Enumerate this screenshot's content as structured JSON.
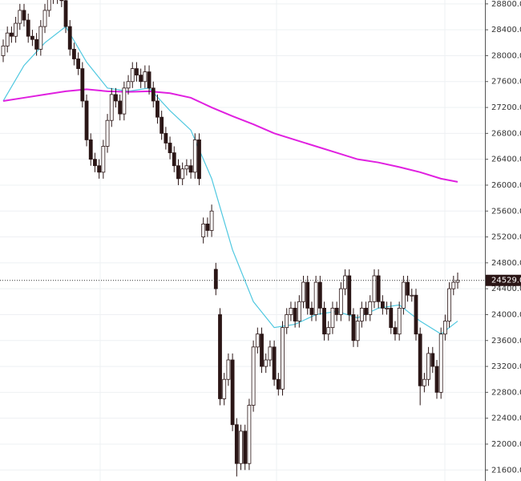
{
  "chart_data": {
    "type": "candlestick",
    "categories": [
      null,
      null,
      null,
      null,
      null,
      null,
      null,
      null,
      null,
      null,
      null,
      null,
      null,
      null,
      null,
      null,
      null,
      null,
      null,
      null,
      null,
      null,
      null,
      null,
      null,
      null,
      null,
      null,
      null,
      null,
      null,
      null,
      null,
      null,
      null,
      null,
      null,
      null,
      null,
      null,
      null,
      null,
      null,
      null,
      null,
      null,
      null,
      null,
      null,
      null,
      null,
      null,
      null,
      null,
      null,
      null,
      null,
      null,
      null,
      null,
      null,
      null,
      null,
      null,
      null,
      null,
      null,
      null,
      null,
      null,
      null,
      null,
      null,
      null,
      null,
      null,
      null,
      null,
      null,
      null,
      null,
      null,
      null,
      null,
      null,
      null,
      null,
      null,
      null,
      null,
      null,
      null,
      null,
      null,
      null,
      null,
      null,
      null,
      null,
      null,
      null,
      null,
      null,
      null,
      null,
      null,
      null,
      null,
      null,
      null
    ],
    "open": [
      28000,
      28150,
      28350,
      28300,
      28500,
      28700,
      28550,
      28300,
      28250,
      28100,
      28450,
      28700,
      28900,
      28950,
      28900,
      28850,
      28450,
      28100,
      27950,
      27800,
      27300,
      26700,
      26400,
      26300,
      26200,
      26600,
      27000,
      27400,
      27300,
      27100,
      27500,
      27600,
      27800,
      27700,
      27600,
      27750,
      27500,
      27300,
      27050,
      26800,
      26650,
      26500,
      26300,
      26100,
      26250,
      26300,
      26200,
      26700,
      25200,
      25400,
      25300,
      24700,
      24000,
      22700,
      23000,
      23300,
      22300,
      21700,
      22200,
      21700,
      22600,
      23500,
      23700,
      23200,
      23300,
      23500,
      23000,
      22850,
      23800,
      24000,
      24100,
      23900,
      24200,
      24500,
      24100,
      24000,
      24500,
      24100,
      23700,
      23800,
      24100,
      24000,
      24400,
      24600,
      24000,
      23600,
      23900,
      24100,
      24000,
      24200,
      24600,
      24200,
      24100,
      24100,
      23800,
      23700,
      24100,
      24500,
      24300,
      24300,
      23700,
      22900,
      23000,
      23400,
      23200,
      22800,
      23700,
      23900,
      24400,
      24500
    ],
    "high": [
      28250,
      28450,
      28450,
      28600,
      28800,
      28800,
      28650,
      28400,
      28350,
      28550,
      28800,
      29000,
      29050,
      29050,
      29000,
      28950,
      28550,
      28200,
      28050,
      27900,
      27400,
      26800,
      26500,
      26400,
      26700,
      27100,
      27500,
      27500,
      27400,
      27600,
      27700,
      27900,
      27900,
      27800,
      27850,
      27850,
      27600,
      27400,
      27150,
      26900,
      26750,
      26600,
      26400,
      26350,
      26400,
      26400,
      26800,
      26800,
      25500,
      25500,
      25700,
      24800,
      24100,
      23100,
      23400,
      23400,
      22400,
      22300,
      22300,
      22700,
      23600,
      23800,
      23800,
      23400,
      23600,
      23600,
      23100,
      23900,
      24100,
      24200,
      24200,
      24300,
      24600,
      24600,
      24200,
      24600,
      24600,
      24200,
      23900,
      24200,
      24200,
      24500,
      24700,
      24700,
      24100,
      24000,
      24200,
      24200,
      24300,
      24700,
      24700,
      24300,
      24200,
      24200,
      23900,
      24200,
      24600,
      24600,
      24400,
      24400,
      23800,
      23100,
      23500,
      23500,
      23300,
      23800,
      24000,
      24500,
      24600,
      24650
    ],
    "low": [
      27900,
      28050,
      28200,
      28200,
      28400,
      28450,
      28200,
      28150,
      28000,
      28000,
      28350,
      28600,
      28800,
      28800,
      28750,
      28350,
      28000,
      27850,
      27700,
      27200,
      26600,
      26300,
      26200,
      26100,
      26100,
      26500,
      26900,
      27200,
      27000,
      27000,
      27400,
      27500,
      27600,
      27500,
      27500,
      27400,
      27200,
      26950,
      26700,
      26550,
      26400,
      26200,
      26000,
      26000,
      26150,
      26100,
      26100,
      26000,
      25100,
      25200,
      25200,
      24300,
      22600,
      22600,
      22900,
      22200,
      21500,
      21600,
      21600,
      21600,
      22500,
      23400,
      23100,
      23100,
      23200,
      22900,
      22750,
      22750,
      23700,
      23900,
      23800,
      23800,
      24100,
      24000,
      23900,
      23900,
      24000,
      23600,
      23600,
      23700,
      23900,
      23900,
      24300,
      23900,
      23500,
      23500,
      23800,
      23900,
      23900,
      24100,
      24100,
      24000,
      24000,
      23700,
      23600,
      23600,
      24000,
      24200,
      24200,
      23600,
      22600,
      22800,
      22900,
      23100,
      22700,
      22700,
      23600,
      23800,
      24300,
      24400
    ],
    "close": [
      28150,
      28350,
      28300,
      28500,
      28700,
      28550,
      28300,
      28250,
      28100,
      28450,
      28700,
      28900,
      28950,
      28900,
      28850,
      28450,
      28100,
      27950,
      27800,
      27300,
      26700,
      26400,
      26300,
      26200,
      26600,
      27000,
      27400,
      27300,
      27100,
      27500,
      27600,
      27800,
      27700,
      27600,
      27750,
      27500,
      27300,
      27050,
      26800,
      26650,
      26500,
      26300,
      26100,
      26250,
      26300,
      26200,
      26700,
      26100,
      25400,
      25300,
      25600,
      24400,
      22700,
      23000,
      23300,
      22300,
      21700,
      22200,
      21700,
      22600,
      23500,
      23700,
      23200,
      23300,
      23500,
      23000,
      22850,
      23800,
      24000,
      24100,
      23900,
      24200,
      24500,
      24100,
      24000,
      24500,
      24100,
      23700,
      23800,
      24100,
      24000,
      24400,
      24600,
      24000,
      23600,
      23900,
      24100,
      24000,
      24200,
      24600,
      24200,
      24100,
      24100,
      23800,
      23700,
      24100,
      24500,
      24300,
      24300,
      23700,
      22900,
      23000,
      23400,
      23200,
      22800,
      23700,
      23900,
      24400,
      24500,
      24529
    ],
    "up_color": "#ffffff",
    "down_color": "#2b1616",
    "candle_edge": "#2b1616",
    "lines": [
      {
        "color": "#4fc8e0",
        "x": [
          0,
          5,
          10,
          15,
          20,
          25,
          30,
          35,
          40,
          45,
          50,
          55,
          60,
          65,
          70,
          75,
          80,
          85,
          90,
          95,
          100,
          105,
          109
        ],
        "values": [
          27300,
          27850,
          28200,
          28450,
          27900,
          27500,
          27450,
          27500,
          27150,
          26850,
          26100,
          25000,
          24200,
          23800,
          23850,
          24000,
          24050,
          23950,
          24100,
          24150,
          23900,
          23700,
          23900
        ]
      },
      {
        "color": "#e020e0",
        "x": [
          0,
          5,
          10,
          15,
          20,
          25,
          30,
          35,
          40,
          45,
          50,
          55,
          60,
          65,
          70,
          75,
          80,
          85,
          90,
          95,
          100,
          105,
          109
        ],
        "values": [
          27300,
          27350,
          27400,
          27450,
          27480,
          27450,
          27440,
          27450,
          27420,
          27350,
          27200,
          27065,
          26940,
          26800,
          26700,
          26600,
          26500,
          26400,
          26350,
          26280,
          26200,
          26100,
          26050
        ]
      }
    ],
    "last_price": {
      "value": 24529,
      "label": "24529.0"
    },
    "ylim": [
      21430,
      28860
    ],
    "yticks": [
      {
        "value": 21600,
        "label": "21600.0"
      },
      {
        "value": 22000,
        "label": "22000.0"
      },
      {
        "value": 22400,
        "label": "22400.0"
      },
      {
        "value": 22800,
        "label": "22800.0"
      },
      {
        "value": 23200,
        "label": "23200.0"
      },
      {
        "value": 23600,
        "label": "23600.0"
      },
      {
        "value": 24000,
        "label": "24000.0"
      },
      {
        "value": 24400,
        "label": "24400.0"
      },
      {
        "value": 24800,
        "label": "24800.0"
      },
      {
        "value": 25200,
        "label": "25200.0"
      },
      {
        "value": 25600,
        "label": "25600.0"
      },
      {
        "value": 26000,
        "label": "26000.0"
      },
      {
        "value": 26400,
        "label": "26400.0"
      },
      {
        "value": 26800,
        "label": "26800.0"
      },
      {
        "value": 27200,
        "label": "27200.0"
      },
      {
        "value": 27600,
        "label": "27600.0"
      },
      {
        "value": 28000,
        "label": "28000.0"
      },
      {
        "value": 28400,
        "label": "28400.0"
      },
      {
        "value": 28800,
        "label": "28800.0"
      }
    ],
    "grid": true
  }
}
